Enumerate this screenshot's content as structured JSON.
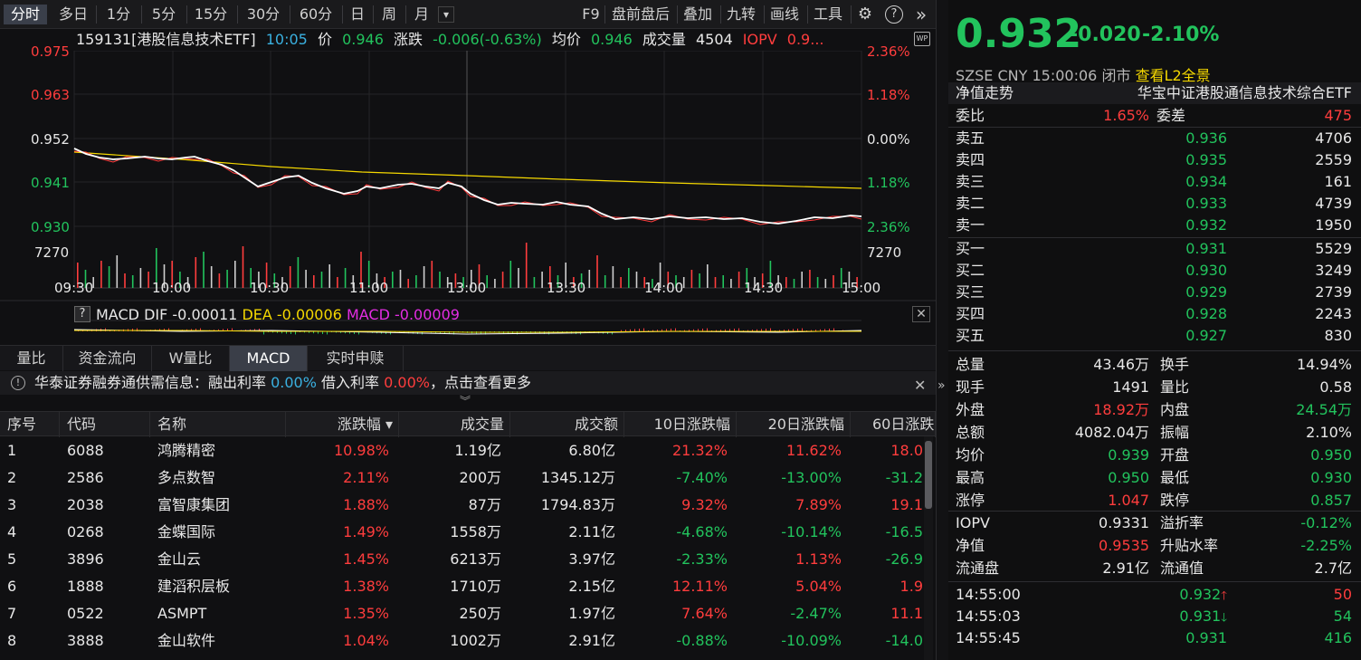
{
  "toolbar": {
    "periods": [
      "分时",
      "多日",
      "1分",
      "5分",
      "15分",
      "30分",
      "60分",
      "日",
      "周",
      "月"
    ],
    "dropdown": "▾",
    "tools": [
      "F9",
      "盘前盘后",
      "叠加",
      "九转",
      "画线",
      "工具"
    ],
    "gear": "⚙",
    "help": "?",
    "more": "»"
  },
  "info": {
    "code_name": "159131[港股信息技术ETF]",
    "time": "10:05",
    "price_label": "价",
    "price": "0.946",
    "change_label": "涨跌",
    "change": "-0.006(-0.63%)",
    "avg_label": "均价",
    "avg": "0.946",
    "volume_label": "成交量",
    "volume": "4504",
    "iopv_label": "IOPV",
    "iopv": "0.9..."
  },
  "chart": {
    "y_left": [
      "0.975",
      "0.963",
      "0.952",
      "0.941",
      "0.930"
    ],
    "y_right": [
      "2.36%",
      "1.18%",
      "0.00%",
      "1.18%",
      "2.36%"
    ],
    "vol_left": "7270",
    "vol_right": "7270",
    "x_ticks": [
      "09:30",
      "10:00",
      "10:30",
      "11:00",
      "13:00",
      "13:30",
      "14:00",
      "14:30",
      "15:00"
    ],
    "colors": {
      "price": "#ffffff",
      "avg": "#f5d800",
      "ma": "#ff3d3d",
      "up": "#ff3d3d",
      "down": "#22c35d",
      "grid": "#252528"
    }
  },
  "macd": {
    "help": "?",
    "title": "MACD",
    "dif_label": "DIF",
    "dif": "-0.00011",
    "dea_label": "DEA",
    "dea": "-0.00006",
    "macd_label": "MACD",
    "macd": "-0.00009",
    "close": "✕"
  },
  "tabs": [
    "量比",
    "资金流向",
    "W量比",
    "MACD",
    "实时申赎"
  ],
  "margin": {
    "icon": "!",
    "prefix": "华泰证券融券通供需信息：融出利率",
    "lend_rate": "0.00%",
    "borrow_label": "借入利率",
    "borrow_rate": "0.00%",
    "suffix": "，点击查看更多",
    "close": "✕",
    "chev": "︾"
  },
  "table": {
    "headers": [
      "序号",
      "代码",
      "名称",
      "涨跌幅 ▾",
      "成交量",
      "成交额",
      "10日涨跌幅",
      "20日涨跌幅",
      "60日涨跌"
    ],
    "rows": [
      [
        "1",
        "6088",
        "鸿腾精密",
        "10.98%",
        "1.19亿",
        "6.80亿",
        "21.32%",
        "11.62%",
        "18.0"
      ],
      [
        "2",
        "2586",
        "多点数智",
        "2.11%",
        "200万",
        "1345.12万",
        "-7.40%",
        "-13.00%",
        "-31.2"
      ],
      [
        "3",
        "2038",
        "富智康集团",
        "1.88%",
        "87万",
        "1794.83万",
        "9.32%",
        "7.89%",
        "19.1"
      ],
      [
        "4",
        "0268",
        "金蝶国际",
        "1.49%",
        "1558万",
        "2.11亿",
        "-4.68%",
        "-10.14%",
        "-16.5"
      ],
      [
        "5",
        "3896",
        "金山云",
        "1.45%",
        "6213万",
        "3.97亿",
        "-2.33%",
        "1.13%",
        "-26.9"
      ],
      [
        "6",
        "1888",
        "建滔积层板",
        "1.38%",
        "1710万",
        "2.15亿",
        "12.11%",
        "5.04%",
        "1.9"
      ],
      [
        "7",
        "0522",
        "ASMPT",
        "1.35%",
        "250万",
        "1.97亿",
        "7.64%",
        "-2.47%",
        "11.1"
      ],
      [
        "8",
        "3888",
        "金山软件",
        "1.04%",
        "1002万",
        "2.91亿",
        "-0.88%",
        "-10.09%",
        "-14.0"
      ]
    ]
  },
  "quote": {
    "price": "0.932",
    "change": "-0.020",
    "change_pct": "-2.10%",
    "exchange": "SZSE",
    "currency": "CNY",
    "time": "15:00:06",
    "status": "闭市",
    "l2": "查看L2全景",
    "nav_trend": "净值走势",
    "fund_name": "华宝中证港股通信息技术综合ETF",
    "weibi_label": "委比",
    "weibi": "1.65%",
    "weicha_label": "委差",
    "weicha": "475",
    "asks": [
      {
        "label": "卖五",
        "price": "0.936",
        "vol": "4706"
      },
      {
        "label": "卖四",
        "price": "0.935",
        "vol": "2559"
      },
      {
        "label": "卖三",
        "price": "0.934",
        "vol": "161"
      },
      {
        "label": "卖二",
        "price": "0.933",
        "vol": "4739"
      },
      {
        "label": "卖一",
        "price": "0.932",
        "vol": "1950"
      }
    ],
    "bids": [
      {
        "label": "买一",
        "price": "0.931",
        "vol": "5529"
      },
      {
        "label": "买二",
        "price": "0.930",
        "vol": "3249"
      },
      {
        "label": "买三",
        "price": "0.929",
        "vol": "2739"
      },
      {
        "label": "买四",
        "price": "0.928",
        "vol": "2243"
      },
      {
        "label": "买五",
        "price": "0.927",
        "vol": "830"
      }
    ],
    "stats": [
      [
        "总量",
        "43.46万",
        "换手",
        "14.94%"
      ],
      [
        "现手",
        "1491",
        "量比",
        "0.58"
      ],
      [
        "外盘",
        "18.92万",
        "内盘",
        "24.54万"
      ],
      [
        "总额",
        "4082.04万",
        "振幅",
        "2.10%"
      ],
      [
        "均价",
        "0.939",
        "开盘",
        "0.950"
      ],
      [
        "最高",
        "0.950",
        "最低",
        "0.930"
      ],
      [
        "涨停",
        "1.047",
        "跌停",
        "0.857"
      ]
    ],
    "stats2": [
      [
        "IOPV",
        "0.9331",
        "溢折率",
        "-0.12%"
      ],
      [
        "净值",
        "0.9535",
        "升贴水率",
        "-2.25%"
      ],
      [
        "流通盘",
        "2.91亿",
        "流通值",
        "2.7亿"
      ]
    ],
    "ticks": [
      {
        "time": "14:55:00",
        "price": "0.932",
        "arrow": "up",
        "vol": "50"
      },
      {
        "time": "14:55:03",
        "price": "0.931",
        "arrow": "down",
        "vol": "54"
      },
      {
        "time": "14:55:45",
        "price": "0.931",
        "arrow": "",
        "vol": "416"
      }
    ]
  }
}
